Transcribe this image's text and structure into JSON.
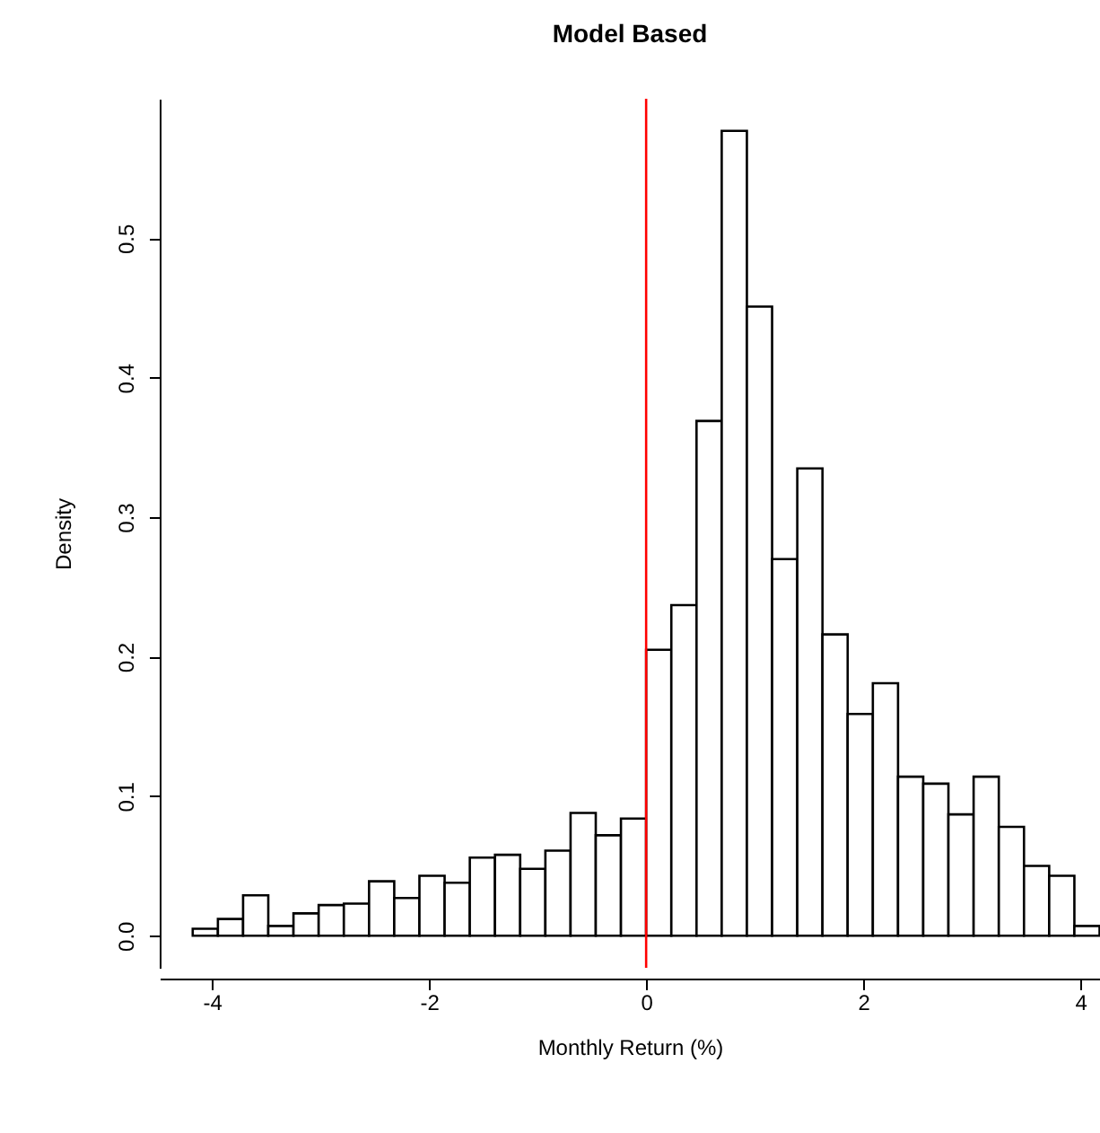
{
  "chart_data": {
    "type": "histogram",
    "title": "Model Based",
    "xlabel": "Monthly Return (%)",
    "ylabel": "Density",
    "color": "#ffffff",
    "bins": [
      -4.176,
      -3.944,
      -3.712,
      -3.48,
      -3.248,
      -3.016,
      -2.784,
      -2.552,
      -2.32,
      -2.088,
      -1.856,
      -1.624,
      -1.392,
      -1.16,
      -0.928,
      -0.696,
      -0.464,
      -0.232,
      0,
      0.232,
      0.464,
      0.696,
      0.928,
      1.16,
      1.392,
      1.624,
      1.856,
      2.088,
      2.32,
      2.552,
      2.784,
      3.016,
      3.248,
      3.48,
      3.712,
      3.944,
      4.176
    ],
    "values": [
      0.005,
      0.012,
      0.029,
      0.007,
      0.016,
      0.022,
      0.023,
      0.039,
      0.027,
      0.043,
      0.038,
      0.056,
      0.058,
      0.048,
      0.061,
      0.088,
      0.072,
      0.084,
      0.205,
      0.237,
      0.369,
      0.577,
      0.451,
      0.27,
      0.335,
      0.216,
      0.159,
      0.181,
      0.114,
      0.109,
      0.087,
      0.114,
      0.078,
      0.05,
      0.043,
      0.007
    ],
    "xlim": [
      -4.48,
      4.18
    ],
    "ylim": [
      -0.023,
      0.6
    ],
    "xticks": [
      -4,
      -2,
      0,
      2,
      4
    ],
    "yticks": [
      {
        "value": 0,
        "label": "0.0"
      },
      0.1,
      0.2,
      0.3,
      0.4,
      0.5
    ],
    "ref_lines": [
      {
        "axis": "x",
        "value": 0,
        "color": "#ff0000"
      }
    ]
  }
}
